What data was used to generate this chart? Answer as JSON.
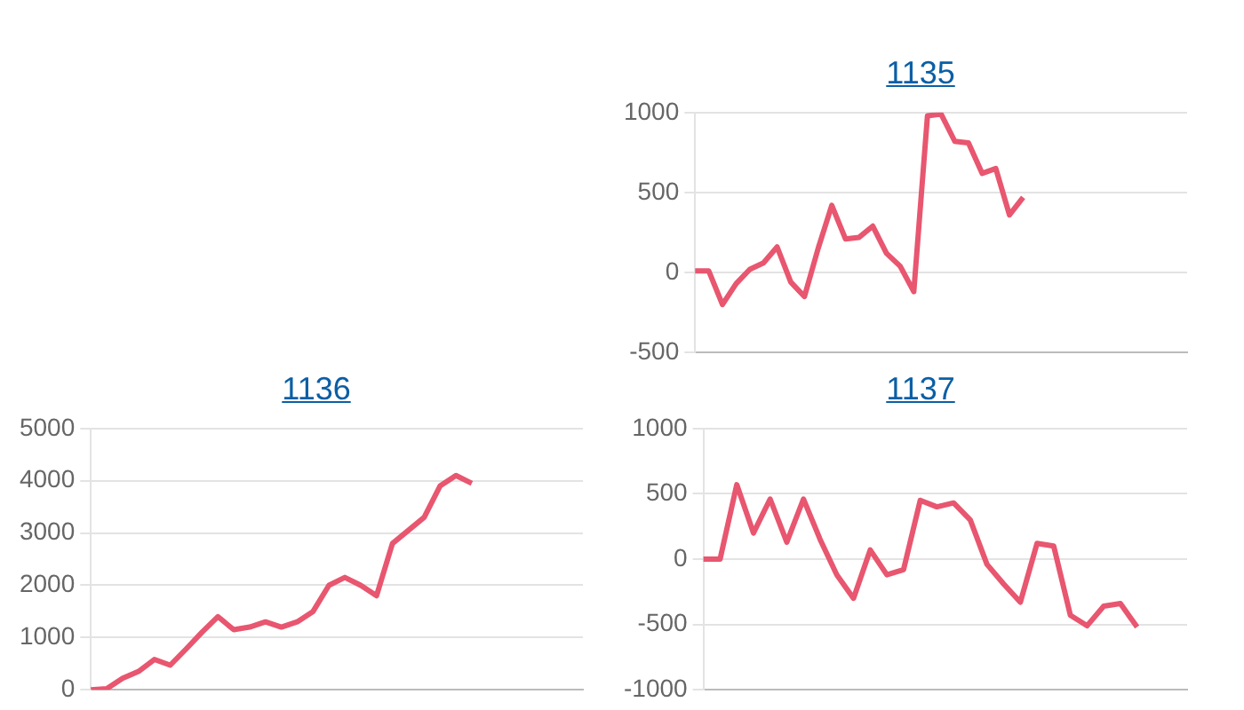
{
  "chart_data": [
    {
      "type": "line",
      "title": "1135",
      "categories": [
        null,
        null,
        null,
        null,
        null,
        null,
        null,
        null,
        null,
        null,
        null,
        null,
        null,
        null,
        null,
        null,
        null,
        null,
        null,
        null,
        null,
        null,
        null,
        null,
        null,
        null,
        null,
        null,
        null,
        null,
        null,
        null,
        null,
        null,
        null,
        null,
        null
      ],
      "series": [
        {
          "color": "#e8566f",
          "values": [
            10,
            10,
            -200,
            -70,
            20,
            60,
            160,
            -60,
            -150,
            150,
            420,
            210,
            220,
            290,
            120,
            40,
            -120,
            980,
            990,
            820,
            810,
            620,
            650,
            360,
            470,
            null,
            null,
            null,
            null,
            null,
            null,
            null,
            null,
            null,
            null,
            null,
            null
          ]
        }
      ],
      "ylim": [
        -500,
        1000
      ],
      "yticks": [
        -500,
        0,
        500,
        1000
      ],
      "grid": "y",
      "tick_labels": "y",
      "marker": "none"
    },
    {
      "type": "line",
      "title": "1136",
      "categories": [
        null,
        null,
        null,
        null,
        null,
        null,
        null,
        null,
        null,
        null,
        null,
        null,
        null,
        null,
        null,
        null,
        null,
        null,
        null,
        null,
        null,
        null,
        null,
        null,
        null,
        null,
        null,
        null,
        null,
        null,
        null,
        null
      ],
      "series": [
        {
          "color": "#e8566f",
          "values": [
            0,
            20,
            220,
            350,
            580,
            470,
            780,
            1100,
            1400,
            1150,
            1200,
            1300,
            1200,
            1300,
            1500,
            2000,
            2150,
            2000,
            1800,
            2800,
            3050,
            3300,
            3900,
            4100,
            3950,
            null,
            null,
            null,
            null,
            null,
            null,
            null
          ]
        }
      ],
      "ylim": [
        0,
        5000
      ],
      "yticks": [
        0,
        1000,
        2000,
        3000,
        4000,
        5000
      ],
      "grid": "y",
      "tick_labels": "y",
      "marker": "none"
    },
    {
      "type": "line",
      "title": "1137",
      "categories": [
        null,
        null,
        null,
        null,
        null,
        null,
        null,
        null,
        null,
        null,
        null,
        null,
        null,
        null,
        null,
        null,
        null,
        null,
        null,
        null,
        null,
        null,
        null,
        null,
        null,
        null,
        null,
        null,
        null,
        null
      ],
      "series": [
        {
          "color": "#e8566f",
          "values": [
            0,
            0,
            570,
            200,
            460,
            130,
            460,
            150,
            -120,
            -300,
            70,
            -120,
            -80,
            450,
            400,
            430,
            300,
            -40,
            -190,
            -330,
            120,
            100,
            -430,
            -510,
            -360,
            -340,
            -520,
            null,
            null,
            null
          ]
        }
      ],
      "ylim": [
        -1000,
        1000
      ],
      "yticks": [
        -1000,
        -500,
        0,
        500,
        1000
      ],
      "grid": "y",
      "tick_labels": "y",
      "marker": "none"
    }
  ]
}
